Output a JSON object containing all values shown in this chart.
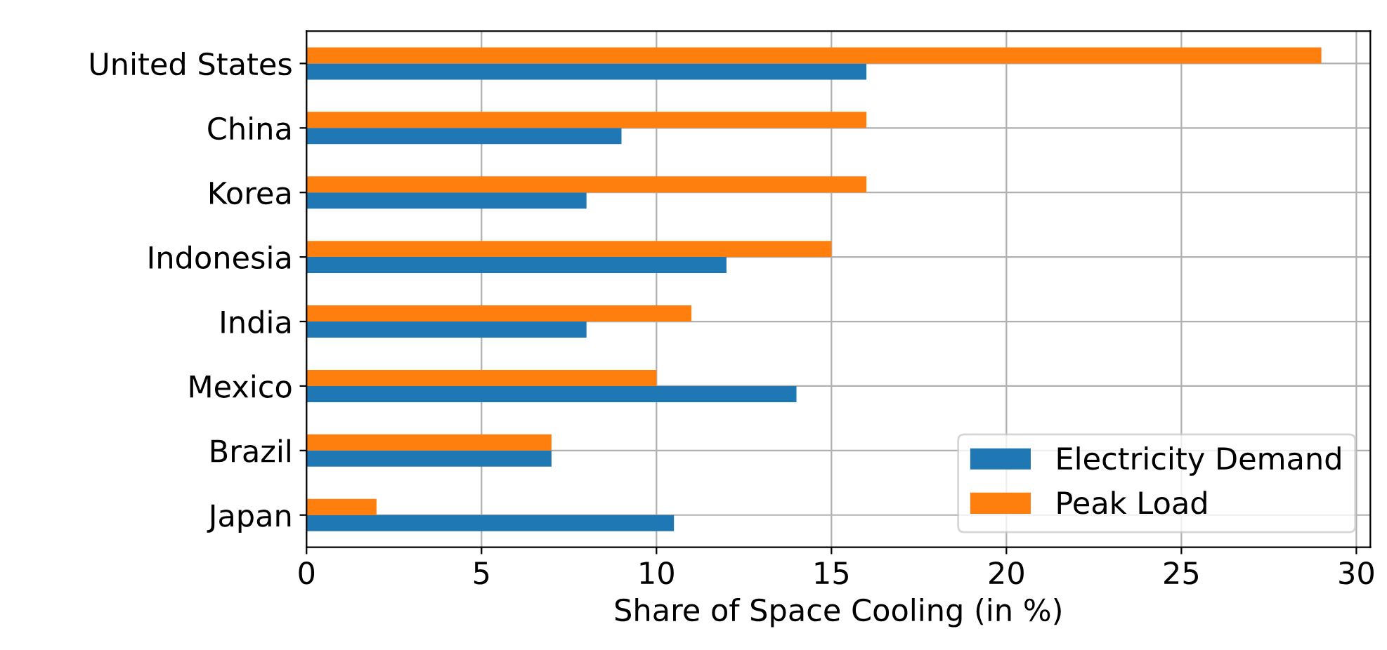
{
  "chart_data": {
    "type": "bar",
    "orientation": "horizontal",
    "xlabel": "Share of Space Cooling (in %)",
    "categories": [
      "United States",
      "China",
      "Korea",
      "Indonesia",
      "India",
      "Mexico",
      "Brazil",
      "Japan"
    ],
    "series": [
      {
        "name": "Electricity Demand",
        "color": "#1f77b4",
        "values": [
          16,
          9,
          8,
          12,
          8,
          14,
          7,
          10.5
        ]
      },
      {
        "name": "Peak Load",
        "color": "#ff7f0e",
        "values": [
          29,
          16,
          16,
          15,
          11,
          10,
          7,
          2
        ]
      }
    ],
    "xlim": [
      0,
      30.4
    ],
    "xticks": [
      0,
      5,
      10,
      15,
      20,
      25,
      30
    ],
    "grid": true,
    "legend": "bottom right"
  }
}
